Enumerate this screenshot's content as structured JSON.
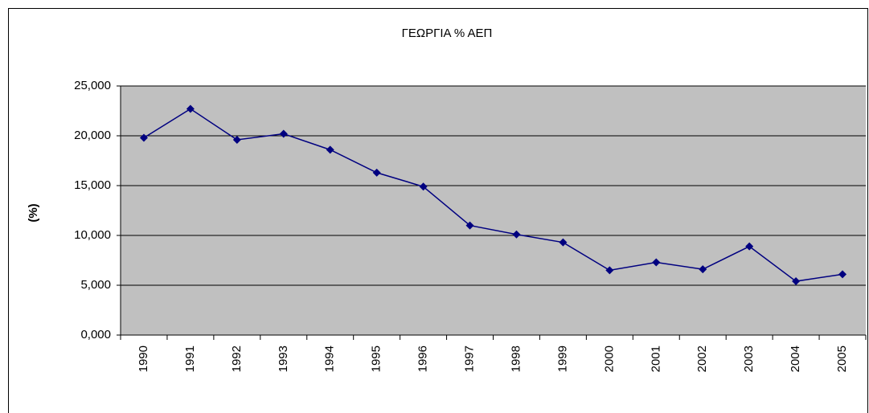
{
  "chart_data": {
    "type": "line",
    "title": "ΓΕΩΡΓΙΑ % ΑΕΠ",
    "y_label": "(%)",
    "categories": [
      "1990",
      "1991",
      "1992",
      "1993",
      "1994",
      "1995",
      "1996",
      "1997",
      "1998",
      "1999",
      "2000",
      "2001",
      "2002",
      "2003",
      "2004",
      "2005"
    ],
    "values": [
      19.8,
      22.7,
      19.6,
      20.2,
      18.6,
      16.3,
      14.9,
      11.0,
      10.1,
      9.3,
      6.5,
      7.3,
      6.6,
      8.9,
      5.4,
      6.1
    ],
    "color": "#000080",
    "ylim": [
      0,
      25
    ],
    "yticks": [
      {
        "value": 0,
        "label": "0,000"
      },
      {
        "value": 5,
        "label": "5,000"
      },
      {
        "value": 10,
        "label": "10,000"
      },
      {
        "value": 15,
        "label": "15,000"
      },
      {
        "value": 20,
        "label": "20,000"
      },
      {
        "value": 25,
        "label": "25,000"
      }
    ],
    "grid": true
  }
}
